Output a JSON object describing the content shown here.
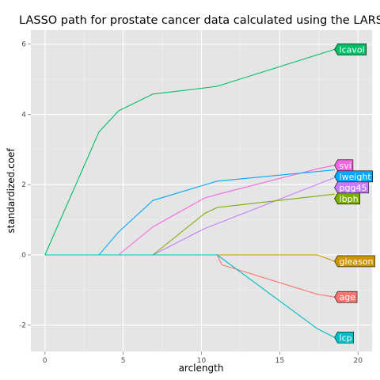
{
  "chart_data": {
    "type": "line",
    "title": "LASSO path for prostate cancer data calculated using the LARS",
    "xlabel": "arclength",
    "ylabel": "standardized.coef",
    "xlim": [
      -0.9,
      20.9
    ],
    "ylim": [
      -2.75,
      6.4
    ],
    "x_ticks": [
      0,
      5,
      10,
      15,
      20
    ],
    "x_tick_labels": [
      "0",
      "5",
      "10",
      "15",
      "20"
    ],
    "y_ticks": [
      -2,
      0,
      2,
      4,
      6
    ],
    "y_tick_labels": [
      "-2",
      "0",
      "2",
      "4",
      "6"
    ],
    "grid": true,
    "background": "#e5e5e5",
    "label_position": "end-of-line",
    "series": [
      {
        "name": "lcavol",
        "color": "#00be67",
        "x": [
          0,
          3.45,
          4.7,
          6.9,
          9.6,
          11.0,
          18.5
        ],
        "y": [
          0,
          3.5,
          4.1,
          4.58,
          4.72,
          4.8,
          5.85
        ]
      },
      {
        "name": "svi",
        "color": "#f564e3",
        "x": [
          0,
          4.7,
          6.9,
          10.2,
          11.0,
          17.4,
          18.5
        ],
        "y": [
          0,
          0,
          0.8,
          1.62,
          1.72,
          2.45,
          2.55
        ]
      },
      {
        "name": "lweight",
        "color": "#00a9ff",
        "x": [
          0,
          3.45,
          4.7,
          6.9,
          11.0,
          18.5
        ],
        "y": [
          0,
          0,
          0.65,
          1.55,
          2.1,
          2.42
        ]
      },
      {
        "name": "pgg45",
        "color": "#c77cff",
        "x": [
          0,
          6.9,
          10.2,
          18.5
        ],
        "y": [
          0,
          0,
          0.75,
          2.2
        ]
      },
      {
        "name": "lbph",
        "color": "#7cae00",
        "x": [
          0,
          6.9,
          10.2,
          11.0,
          18.5
        ],
        "y": [
          0,
          0,
          1.18,
          1.35,
          1.73
        ]
      },
      {
        "name": "gleason",
        "color": "#cd9600",
        "x": [
          0,
          17.4,
          18.5
        ],
        "y": [
          0,
          0,
          -0.18
        ]
      },
      {
        "name": "age",
        "color": "#f8766d",
        "x": [
          0,
          11.0,
          11.3,
          17.4,
          18.5
        ],
        "y": [
          0,
          0,
          -0.28,
          -1.12,
          -1.2
        ]
      },
      {
        "name": "lcp",
        "color": "#00bfc4",
        "x": [
          0,
          10.2,
          11.0,
          17.4,
          18.5
        ],
        "y": [
          0,
          0,
          0,
          -2.1,
          -2.35
        ]
      }
    ]
  }
}
